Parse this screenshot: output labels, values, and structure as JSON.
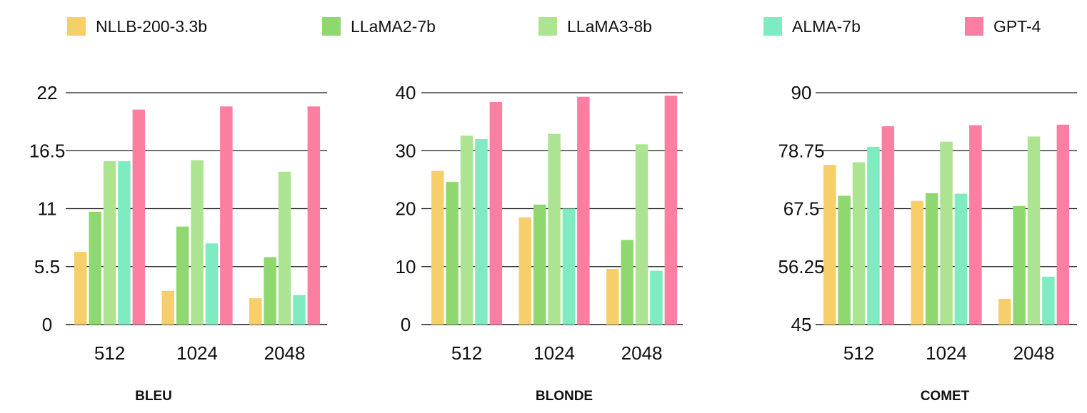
{
  "legend": [
    {
      "name": "NLLB-200-3.3b",
      "color": "#F7CF6A"
    },
    {
      "name": "LLaMA2-7b",
      "color": "#8ED86F"
    },
    {
      "name": "LLaMA3-8b",
      "color": "#ADE491"
    },
    {
      "name": "ALMA-7b",
      "color": "#7FEBC0"
    },
    {
      "name": "GPT-4",
      "color": "#FC7FA1"
    }
  ],
  "chart_data": [
    {
      "type": "bar",
      "title": "BLEU",
      "categories": [
        "512",
        "1024",
        "2048"
      ],
      "yticks": [
        "0",
        "5.5",
        "11",
        "16.5",
        "22"
      ],
      "ylim": [
        0,
        22
      ],
      "grid": true,
      "legend_position": "top",
      "series": [
        {
          "name": "NLLB-200-3.3b",
          "values": [
            6.9,
            3.2,
            2.5
          ]
        },
        {
          "name": "LLaMA2-7b",
          "values": [
            10.7,
            9.3,
            6.4
          ]
        },
        {
          "name": "LLaMA3-8b",
          "values": [
            15.5,
            15.6,
            14.5
          ]
        },
        {
          "name": "ALMA-7b",
          "values": [
            15.5,
            7.7,
            2.8
          ]
        },
        {
          "name": "GPT-4",
          "values": [
            20.4,
            20.7,
            20.7
          ]
        }
      ]
    },
    {
      "type": "bar",
      "title": "BLONDE",
      "categories": [
        "512",
        "1024",
        "2048"
      ],
      "yticks": [
        "0",
        "10",
        "20",
        "30",
        "40"
      ],
      "ylim": [
        0,
        40
      ],
      "grid": true,
      "legend_position": "top",
      "series": [
        {
          "name": "NLLB-200-3.3b",
          "values": [
            26.5,
            18.5,
            9.6
          ]
        },
        {
          "name": "LLaMA2-7b",
          "values": [
            24.6,
            20.7,
            14.6
          ]
        },
        {
          "name": "LLaMA3-8b",
          "values": [
            32.6,
            32.9,
            31.1
          ]
        },
        {
          "name": "ALMA-7b",
          "values": [
            32.0,
            20.0,
            9.3
          ]
        },
        {
          "name": "GPT-4",
          "values": [
            38.4,
            39.3,
            39.5
          ]
        }
      ]
    },
    {
      "type": "bar",
      "title": "COMET",
      "categories": [
        "512",
        "1024",
        "2048"
      ],
      "yticks": [
        "45",
        "56.25",
        "67.5",
        "78.75",
        "90"
      ],
      "ylim": [
        45,
        90
      ],
      "grid": true,
      "legend_position": "top",
      "series": [
        {
          "name": "NLLB-200-3.3b",
          "values": [
            76.0,
            69.0,
            50.0
          ]
        },
        {
          "name": "LLaMA2-7b",
          "values": [
            70.0,
            70.5,
            68.0
          ]
        },
        {
          "name": "LLaMA3-8b",
          "values": [
            76.5,
            80.5,
            81.5
          ]
        },
        {
          "name": "ALMA-7b",
          "values": [
            79.5,
            70.4,
            54.3
          ]
        },
        {
          "name": "GPT-4",
          "values": [
            83.5,
            83.7,
            83.8
          ]
        }
      ]
    }
  ]
}
